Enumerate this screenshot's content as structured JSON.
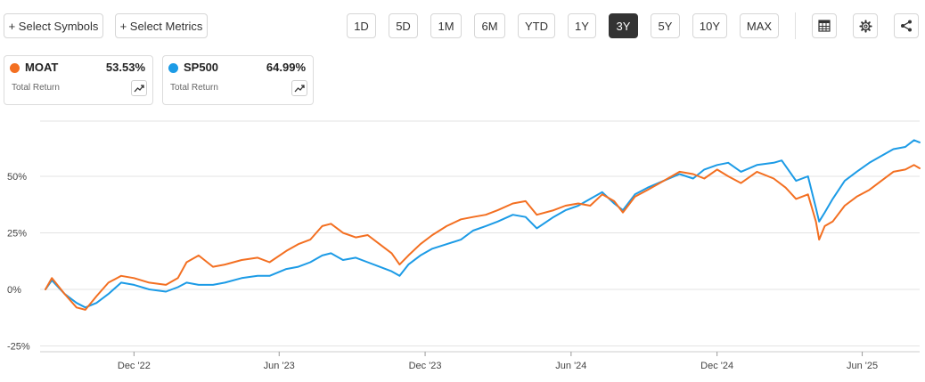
{
  "toolbar": {
    "select_symbols": "+ Select Symbols",
    "select_metrics": "+ Select Metrics",
    "ranges": [
      {
        "label": "1D",
        "active": false
      },
      {
        "label": "5D",
        "active": false
      },
      {
        "label": "1M",
        "active": false
      },
      {
        "label": "6M",
        "active": false
      },
      {
        "label": "YTD",
        "active": false
      },
      {
        "label": "1Y",
        "active": false
      },
      {
        "label": "3Y",
        "active": true
      },
      {
        "label": "5Y",
        "active": false
      },
      {
        "label": "10Y",
        "active": false
      },
      {
        "label": "MAX",
        "active": false
      }
    ],
    "icons": [
      "table-icon",
      "gear-icon",
      "share-icon"
    ]
  },
  "cards": [
    {
      "symbol": "MOAT",
      "value": "53.53%",
      "metric": "Total Return",
      "color": "#f36f21"
    },
    {
      "symbol": "SP500",
      "value": "64.99%",
      "metric": "Total Return",
      "color": "#1c9be6"
    }
  ],
  "chart_data": {
    "type": "line",
    "ylim": [
      -25,
      75
    ],
    "y_ticks": [
      -25,
      0,
      25,
      50
    ],
    "y_tick_labels": [
      "-25%",
      "0%",
      "25%",
      "50%"
    ],
    "x_range": [
      "2022-08-12",
      "2025-08-12"
    ],
    "x_ticks": [
      {
        "date": "2022-12-01",
        "label": "Dec '22"
      },
      {
        "date": "2023-06-01",
        "label": "Jun '23"
      },
      {
        "date": "2023-12-01",
        "label": "Dec '23"
      },
      {
        "date": "2024-06-01",
        "label": "Jun '24"
      },
      {
        "date": "2024-12-01",
        "label": "Dec '24"
      },
      {
        "date": "2025-06-01",
        "label": "Jun '25"
      }
    ],
    "grid": true,
    "series": [
      {
        "name": "MOAT",
        "color": "#f36f21",
        "points": [
          [
            "2022-08-12",
            0
          ],
          [
            "2022-08-20",
            5
          ],
          [
            "2022-09-05",
            -2
          ],
          [
            "2022-09-20",
            -8
          ],
          [
            "2022-10-01",
            -9
          ],
          [
            "2022-10-15",
            -3
          ],
          [
            "2022-10-30",
            3
          ],
          [
            "2022-11-15",
            6
          ],
          [
            "2022-12-01",
            5
          ],
          [
            "2022-12-20",
            3
          ],
          [
            "2023-01-10",
            2
          ],
          [
            "2023-01-25",
            5
          ],
          [
            "2023-02-05",
            12
          ],
          [
            "2023-02-20",
            15
          ],
          [
            "2023-03-10",
            10
          ],
          [
            "2023-03-25",
            11
          ],
          [
            "2023-04-15",
            13
          ],
          [
            "2023-05-05",
            14
          ],
          [
            "2023-05-20",
            12
          ],
          [
            "2023-06-10",
            17
          ],
          [
            "2023-06-25",
            20
          ],
          [
            "2023-07-10",
            22
          ],
          [
            "2023-07-25",
            28
          ],
          [
            "2023-08-05",
            29
          ],
          [
            "2023-08-20",
            25
          ],
          [
            "2023-09-05",
            23
          ],
          [
            "2023-09-20",
            24
          ],
          [
            "2023-10-05",
            20
          ],
          [
            "2023-10-20",
            16
          ],
          [
            "2023-10-30",
            11
          ],
          [
            "2023-11-10",
            15
          ],
          [
            "2023-11-25",
            20
          ],
          [
            "2023-12-10",
            24
          ],
          [
            "2023-12-28",
            28
          ],
          [
            "2024-01-15",
            31
          ],
          [
            "2024-01-30",
            32
          ],
          [
            "2024-02-15",
            33
          ],
          [
            "2024-03-01",
            35
          ],
          [
            "2024-03-20",
            38
          ],
          [
            "2024-04-05",
            39
          ],
          [
            "2024-04-19",
            33
          ],
          [
            "2024-05-10",
            35
          ],
          [
            "2024-05-25",
            37
          ],
          [
            "2024-06-10",
            38
          ],
          [
            "2024-06-25",
            37
          ],
          [
            "2024-07-10",
            42
          ],
          [
            "2024-07-25",
            39
          ],
          [
            "2024-08-05",
            34
          ],
          [
            "2024-08-20",
            41
          ],
          [
            "2024-09-05",
            44
          ],
          [
            "2024-09-25",
            48
          ],
          [
            "2024-10-15",
            52
          ],
          [
            "2024-11-01",
            51
          ],
          [
            "2024-11-15",
            49
          ],
          [
            "2024-12-01",
            53
          ],
          [
            "2024-12-15",
            50
          ],
          [
            "2024-12-31",
            47
          ],
          [
            "2025-01-20",
            52
          ],
          [
            "2025-02-10",
            49
          ],
          [
            "2025-02-25",
            45
          ],
          [
            "2025-03-10",
            40
          ],
          [
            "2025-03-25",
            42
          ],
          [
            "2025-04-04",
            30
          ],
          [
            "2025-04-08",
            22
          ],
          [
            "2025-04-15",
            28
          ],
          [
            "2025-04-25",
            30
          ],
          [
            "2025-05-10",
            37
          ],
          [
            "2025-05-25",
            41
          ],
          [
            "2025-06-10",
            44
          ],
          [
            "2025-06-25",
            48
          ],
          [
            "2025-07-10",
            52
          ],
          [
            "2025-07-25",
            53
          ],
          [
            "2025-08-05",
            55
          ],
          [
            "2025-08-12",
            53.53
          ]
        ]
      },
      {
        "name": "SP500",
        "color": "#1c9be6",
        "points": [
          [
            "2022-08-12",
            0
          ],
          [
            "2022-08-20",
            4
          ],
          [
            "2022-09-05",
            -2
          ],
          [
            "2022-09-20",
            -6
          ],
          [
            "2022-10-01",
            -8
          ],
          [
            "2022-10-15",
            -6
          ],
          [
            "2022-10-30",
            -2
          ],
          [
            "2022-11-15",
            3
          ],
          [
            "2022-12-01",
            2
          ],
          [
            "2022-12-20",
            0
          ],
          [
            "2023-01-10",
            -1
          ],
          [
            "2023-01-25",
            1
          ],
          [
            "2023-02-05",
            3
          ],
          [
            "2023-02-20",
            2
          ],
          [
            "2023-03-10",
            2
          ],
          [
            "2023-03-25",
            3
          ],
          [
            "2023-04-15",
            5
          ],
          [
            "2023-05-05",
            6
          ],
          [
            "2023-05-20",
            6
          ],
          [
            "2023-06-10",
            9
          ],
          [
            "2023-06-25",
            10
          ],
          [
            "2023-07-10",
            12
          ],
          [
            "2023-07-25",
            15
          ],
          [
            "2023-08-05",
            16
          ],
          [
            "2023-08-20",
            13
          ],
          [
            "2023-09-05",
            14
          ],
          [
            "2023-09-20",
            12
          ],
          [
            "2023-10-05",
            10
          ],
          [
            "2023-10-20",
            8
          ],
          [
            "2023-10-30",
            6
          ],
          [
            "2023-11-10",
            11
          ],
          [
            "2023-11-25",
            15
          ],
          [
            "2023-12-10",
            18
          ],
          [
            "2023-12-28",
            20
          ],
          [
            "2024-01-15",
            22
          ],
          [
            "2024-01-30",
            26
          ],
          [
            "2024-02-15",
            28
          ],
          [
            "2024-03-01",
            30
          ],
          [
            "2024-03-20",
            33
          ],
          [
            "2024-04-05",
            32
          ],
          [
            "2024-04-19",
            27
          ],
          [
            "2024-05-10",
            32
          ],
          [
            "2024-05-25",
            35
          ],
          [
            "2024-06-10",
            37
          ],
          [
            "2024-06-25",
            40
          ],
          [
            "2024-07-10",
            43
          ],
          [
            "2024-07-25",
            38
          ],
          [
            "2024-08-05",
            35
          ],
          [
            "2024-08-20",
            42
          ],
          [
            "2024-09-05",
            45
          ],
          [
            "2024-09-25",
            48
          ],
          [
            "2024-10-15",
            51
          ],
          [
            "2024-11-01",
            49
          ],
          [
            "2024-11-15",
            53
          ],
          [
            "2024-12-01",
            55
          ],
          [
            "2024-12-15",
            56
          ],
          [
            "2024-12-31",
            52
          ],
          [
            "2025-01-20",
            55
          ],
          [
            "2025-02-10",
            56
          ],
          [
            "2025-02-20",
            57
          ],
          [
            "2025-03-10",
            48
          ],
          [
            "2025-03-25",
            50
          ],
          [
            "2025-04-04",
            36
          ],
          [
            "2025-04-08",
            30
          ],
          [
            "2025-04-15",
            34
          ],
          [
            "2025-04-25",
            40
          ],
          [
            "2025-05-10",
            48
          ],
          [
            "2025-05-25",
            52
          ],
          [
            "2025-06-10",
            56
          ],
          [
            "2025-06-25",
            59
          ],
          [
            "2025-07-10",
            62
          ],
          [
            "2025-07-25",
            63
          ],
          [
            "2025-08-05",
            66
          ],
          [
            "2025-08-12",
            64.99
          ]
        ]
      }
    ]
  }
}
